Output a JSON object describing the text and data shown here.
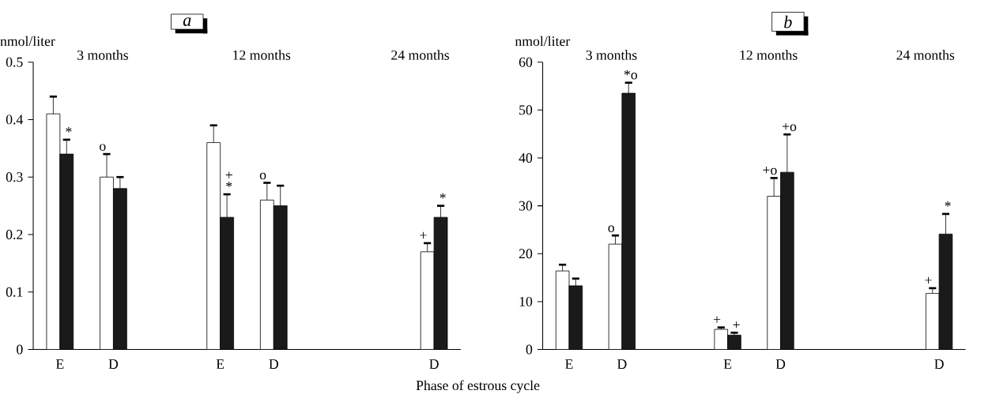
{
  "chart_data": [
    {
      "type": "bar",
      "title": "a",
      "ylabel": "nmol/liter",
      "xlabel": "Phase of estrous cycle",
      "annotations": [
        "3 months",
        "12 months",
        "24 months"
      ],
      "categories": [
        "E",
        "D",
        null,
        "E",
        "D",
        null,
        null,
        "D"
      ],
      "ylim": [
        0,
        0.5
      ],
      "yticks": [
        0,
        0.1,
        0.2,
        0.3,
        0.4,
        0.5
      ],
      "series": [
        {
          "color": "#ffffff",
          "values": [
            0.41,
            0.3,
            null,
            0.36,
            0.26,
            null,
            null,
            0.17
          ],
          "errors": [
            0.03,
            0.04,
            null,
            0.03,
            0.03,
            null,
            null,
            0.015
          ],
          "value_labels": [
            null,
            "o",
            null,
            null,
            "o",
            null,
            null,
            "+"
          ]
        },
        {
          "color": "#1a1a1a",
          "values": [
            0.34,
            0.28,
            null,
            0.23,
            0.25,
            null,
            null,
            0.23
          ],
          "errors": [
            0.025,
            0.02,
            null,
            0.04,
            0.035,
            null,
            null,
            0.02
          ],
          "value_labels": [
            "*",
            null,
            null,
            "+ *",
            null,
            null,
            null,
            "*"
          ]
        }
      ]
    },
    {
      "type": "bar",
      "title": "b",
      "ylabel": "nmol/liter",
      "annotations": [
        "3 months",
        "12 months",
        "24 months"
      ],
      "categories": [
        "E",
        "D",
        null,
        "E",
        "D",
        null,
        null,
        "D"
      ],
      "ylim": [
        0,
        60
      ],
      "yticks": [
        0,
        10,
        20,
        30,
        40,
        50,
        60
      ],
      "series": [
        {
          "color": "#ffffff",
          "values": [
            16.4,
            22.0,
            null,
            4.2,
            32.0,
            null,
            null,
            11.7
          ],
          "errors": [
            1.3,
            1.8,
            null,
            0.4,
            3.8,
            null,
            null,
            1.1
          ],
          "value_labels": [
            null,
            "o",
            null,
            "+",
            "+o",
            null,
            null,
            "+"
          ]
        },
        {
          "color": "#1a1a1a",
          "values": [
            13.3,
            53.5,
            null,
            3.0,
            37.0,
            null,
            null,
            24.1
          ],
          "errors": [
            1.5,
            2.2,
            null,
            0.5,
            7.9,
            null,
            null,
            4.2
          ],
          "value_labels": [
            null,
            "*o",
            null,
            "+",
            "+o",
            null,
            null,
            "*"
          ]
        }
      ]
    }
  ]
}
